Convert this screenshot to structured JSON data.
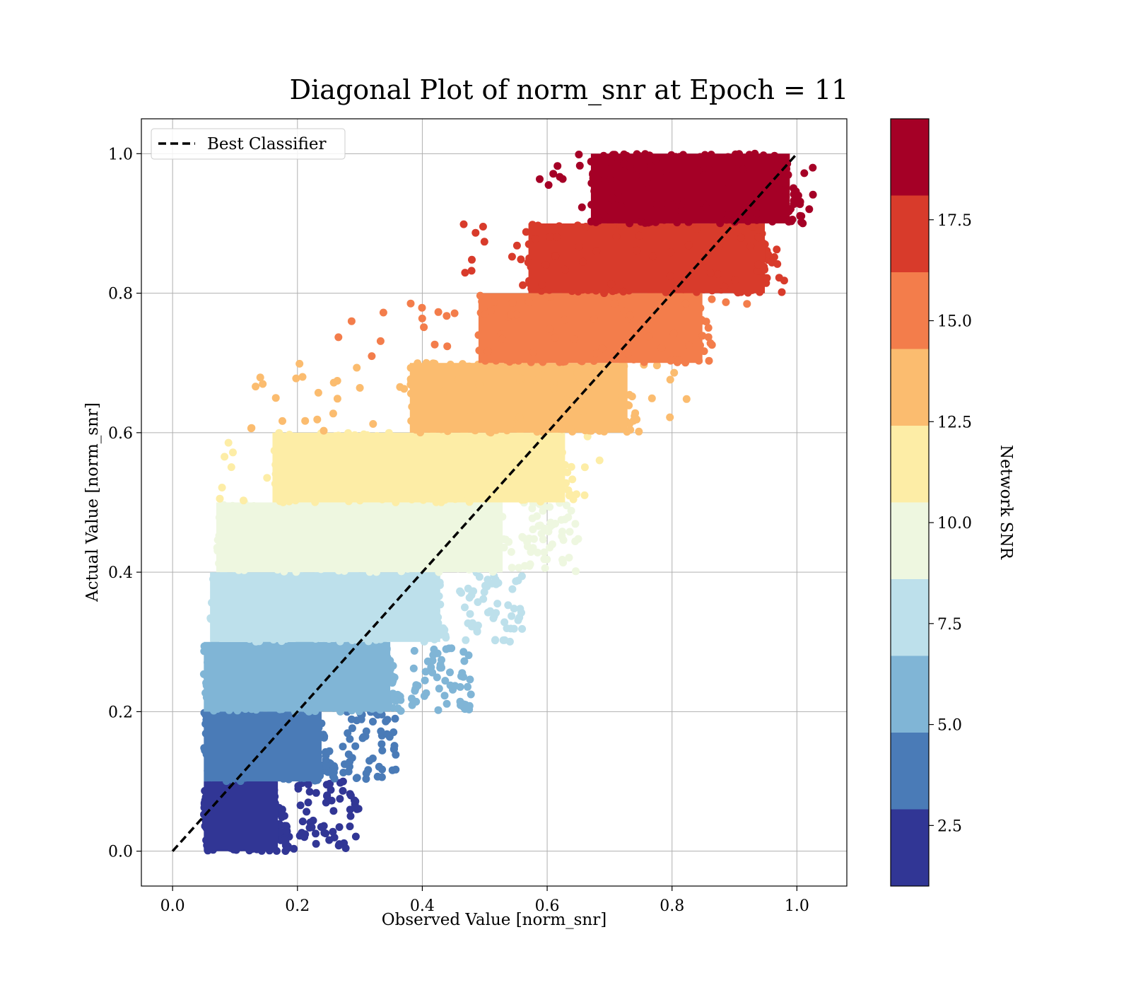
{
  "chart_data": {
    "type": "scatter",
    "title": "Diagonal Plot of norm_snr at Epoch = 11",
    "xlabel": "Observed Value [norm_snr]",
    "ylabel": "Actual Value [norm_snr]",
    "xlim": [
      -0.05,
      1.08
    ],
    "ylim": [
      -0.05,
      1.05
    ],
    "x_ticks": [
      "0.0",
      "0.2",
      "0.4",
      "0.6",
      "0.8",
      "1.0"
    ],
    "y_ticks": [
      "0.0",
      "0.2",
      "0.4",
      "0.6",
      "0.8",
      "1.0"
    ],
    "grid": true,
    "legend": {
      "placement": "upper-left",
      "entries": [
        {
          "label": "Best Classifier",
          "style": "dashed-black-line"
        }
      ]
    },
    "reference_line": {
      "name": "Best Classifier",
      "x": [
        0,
        1
      ],
      "y": [
        0,
        1
      ],
      "color": "#000000",
      "dash": "dashed"
    },
    "colorbar": {
      "label": "Network SNR",
      "range": [
        1,
        20
      ],
      "ticks": [
        "2.5",
        "5.0",
        "7.5",
        "10.0",
        "12.5",
        "15.0",
        "17.5"
      ],
      "bins": [
        {
          "snr_min": 1.0,
          "snr_max": 2.9,
          "color": "#313695"
        },
        {
          "snr_min": 2.9,
          "snr_max": 4.8,
          "color": "#4a7bb7"
        },
        {
          "snr_min": 4.8,
          "snr_max": 6.7,
          "color": "#80b5d6"
        },
        {
          "snr_min": 6.7,
          "snr_max": 8.6,
          "color": "#bde0eb"
        },
        {
          "snr_min": 8.6,
          "snr_max": 10.5,
          "color": "#eef7e0"
        },
        {
          "snr_min": 10.5,
          "snr_max": 12.4,
          "color": "#fdeda6"
        },
        {
          "snr_min": 12.4,
          "snr_max": 14.3,
          "color": "#fbbc6f"
        },
        {
          "snr_min": 14.3,
          "snr_max": 16.2,
          "color": "#f37d4b"
        },
        {
          "snr_min": 16.2,
          "snr_max": 18.1,
          "color": "#d83b2b"
        },
        {
          "snr_min": 18.1,
          "snr_max": 20.0,
          "color": "#a50026"
        }
      ]
    },
    "series": [
      {
        "y_band": [
          0.0,
          0.1
        ],
        "core_x": [
          0.05,
          0.18
        ],
        "sparse_x": [
          0.2,
          0.3
        ],
        "color": "#313695"
      },
      {
        "y_band": [
          0.1,
          0.2
        ],
        "core_x": [
          0.05,
          0.25
        ],
        "sparse_x": [
          0.27,
          0.36
        ],
        "color": "#4a7bb7"
      },
      {
        "y_band": [
          0.2,
          0.3
        ],
        "core_x": [
          0.05,
          0.36
        ],
        "sparse_x": [
          0.38,
          0.48
        ],
        "color": "#80b5d6"
      },
      {
        "y_band": [
          0.3,
          0.4
        ],
        "core_x": [
          0.06,
          0.44
        ],
        "sparse_x": [
          0.46,
          0.56
        ],
        "color": "#bde0eb"
      },
      {
        "y_band": [
          0.4,
          0.5
        ],
        "core_x": [
          0.07,
          0.54
        ],
        "sparse_x": [
          0.56,
          0.65
        ],
        "color": "#eef7e0"
      },
      {
        "y_band": [
          0.5,
          0.6
        ],
        "core_x": [
          0.16,
          0.64
        ],
        "sparse_x": [
          0.07,
          0.73
        ],
        "color": "#fdeda6"
      },
      {
        "y_band": [
          0.6,
          0.7
        ],
        "core_x": [
          0.38,
          0.74
        ],
        "sparse_x": [
          0.12,
          0.83
        ],
        "color": "#fbbc6f"
      },
      {
        "y_band": [
          0.7,
          0.8
        ],
        "core_x": [
          0.49,
          0.86
        ],
        "sparse_x": [
          0.24,
          0.93
        ],
        "color": "#f37d4b"
      },
      {
        "y_band": [
          0.8,
          0.9
        ],
        "core_x": [
          0.57,
          0.96
        ],
        "sparse_x": [
          0.45,
          0.98
        ],
        "color": "#d83b2b"
      },
      {
        "y_band": [
          0.9,
          1.0
        ],
        "core_x": [
          0.67,
          1.0
        ],
        "sparse_x": [
          0.55,
          1.03
        ],
        "color": "#a50026"
      }
    ]
  }
}
